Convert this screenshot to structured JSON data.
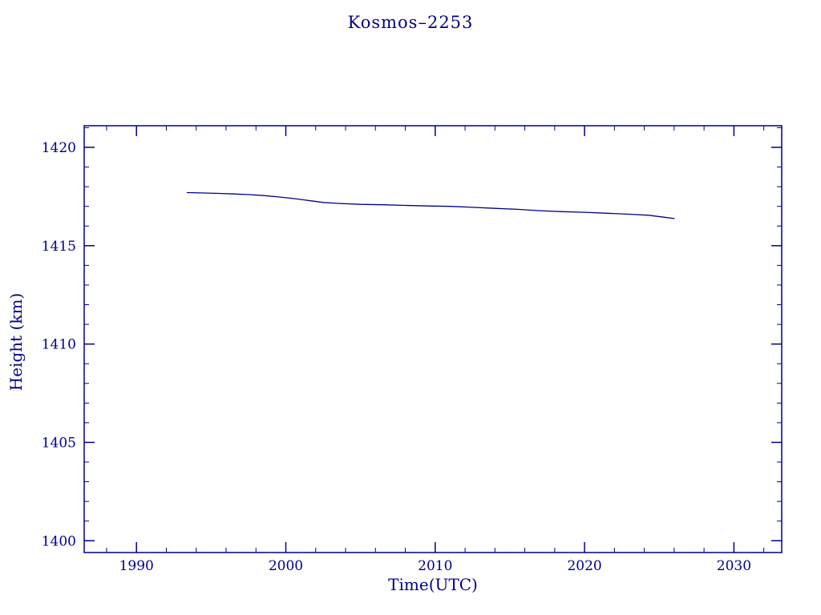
{
  "chart_data": {
    "type": "line",
    "title": "Kosmos–2253",
    "xlabel": "Time(UTC)",
    "ylabel": "Height (km)",
    "xlim": [
      1986.5,
      2033.2
    ],
    "ylim": [
      1399.4,
      1421.1
    ],
    "x_ticks": [
      1990,
      2000,
      2010,
      2020,
      2030
    ],
    "y_ticks": [
      1400,
      1405,
      1410,
      1415,
      1420
    ],
    "x_minor_step": 2,
    "y_minor_step": 1,
    "grid": false,
    "legend": "none",
    "axis_color": "#00008b",
    "line_color": "#00008b",
    "series": [
      {
        "name": "Kosmos-2253 height",
        "x": [
          1993.4,
          1994.5,
          1995.5,
          1996.5,
          1997.5,
          1998.5,
          1999.5,
          2000.5,
          2001.5,
          2002.5,
          2003.5,
          2005.0,
          2006.5,
          2008.0,
          2009.5,
          2011.0,
          2012.5,
          2014.0,
          2015.5,
          2017.0,
          2018.5,
          2020.0,
          2021.5,
          2023.0,
          2024.3,
          2025.3,
          2026.0
        ],
        "y": [
          1417.7,
          1417.68,
          1417.66,
          1417.63,
          1417.6,
          1417.55,
          1417.48,
          1417.4,
          1417.3,
          1417.2,
          1417.15,
          1417.1,
          1417.08,
          1417.05,
          1417.02,
          1417.0,
          1416.95,
          1416.9,
          1416.85,
          1416.78,
          1416.73,
          1416.7,
          1416.65,
          1416.6,
          1416.55,
          1416.45,
          1416.38
        ]
      }
    ]
  }
}
